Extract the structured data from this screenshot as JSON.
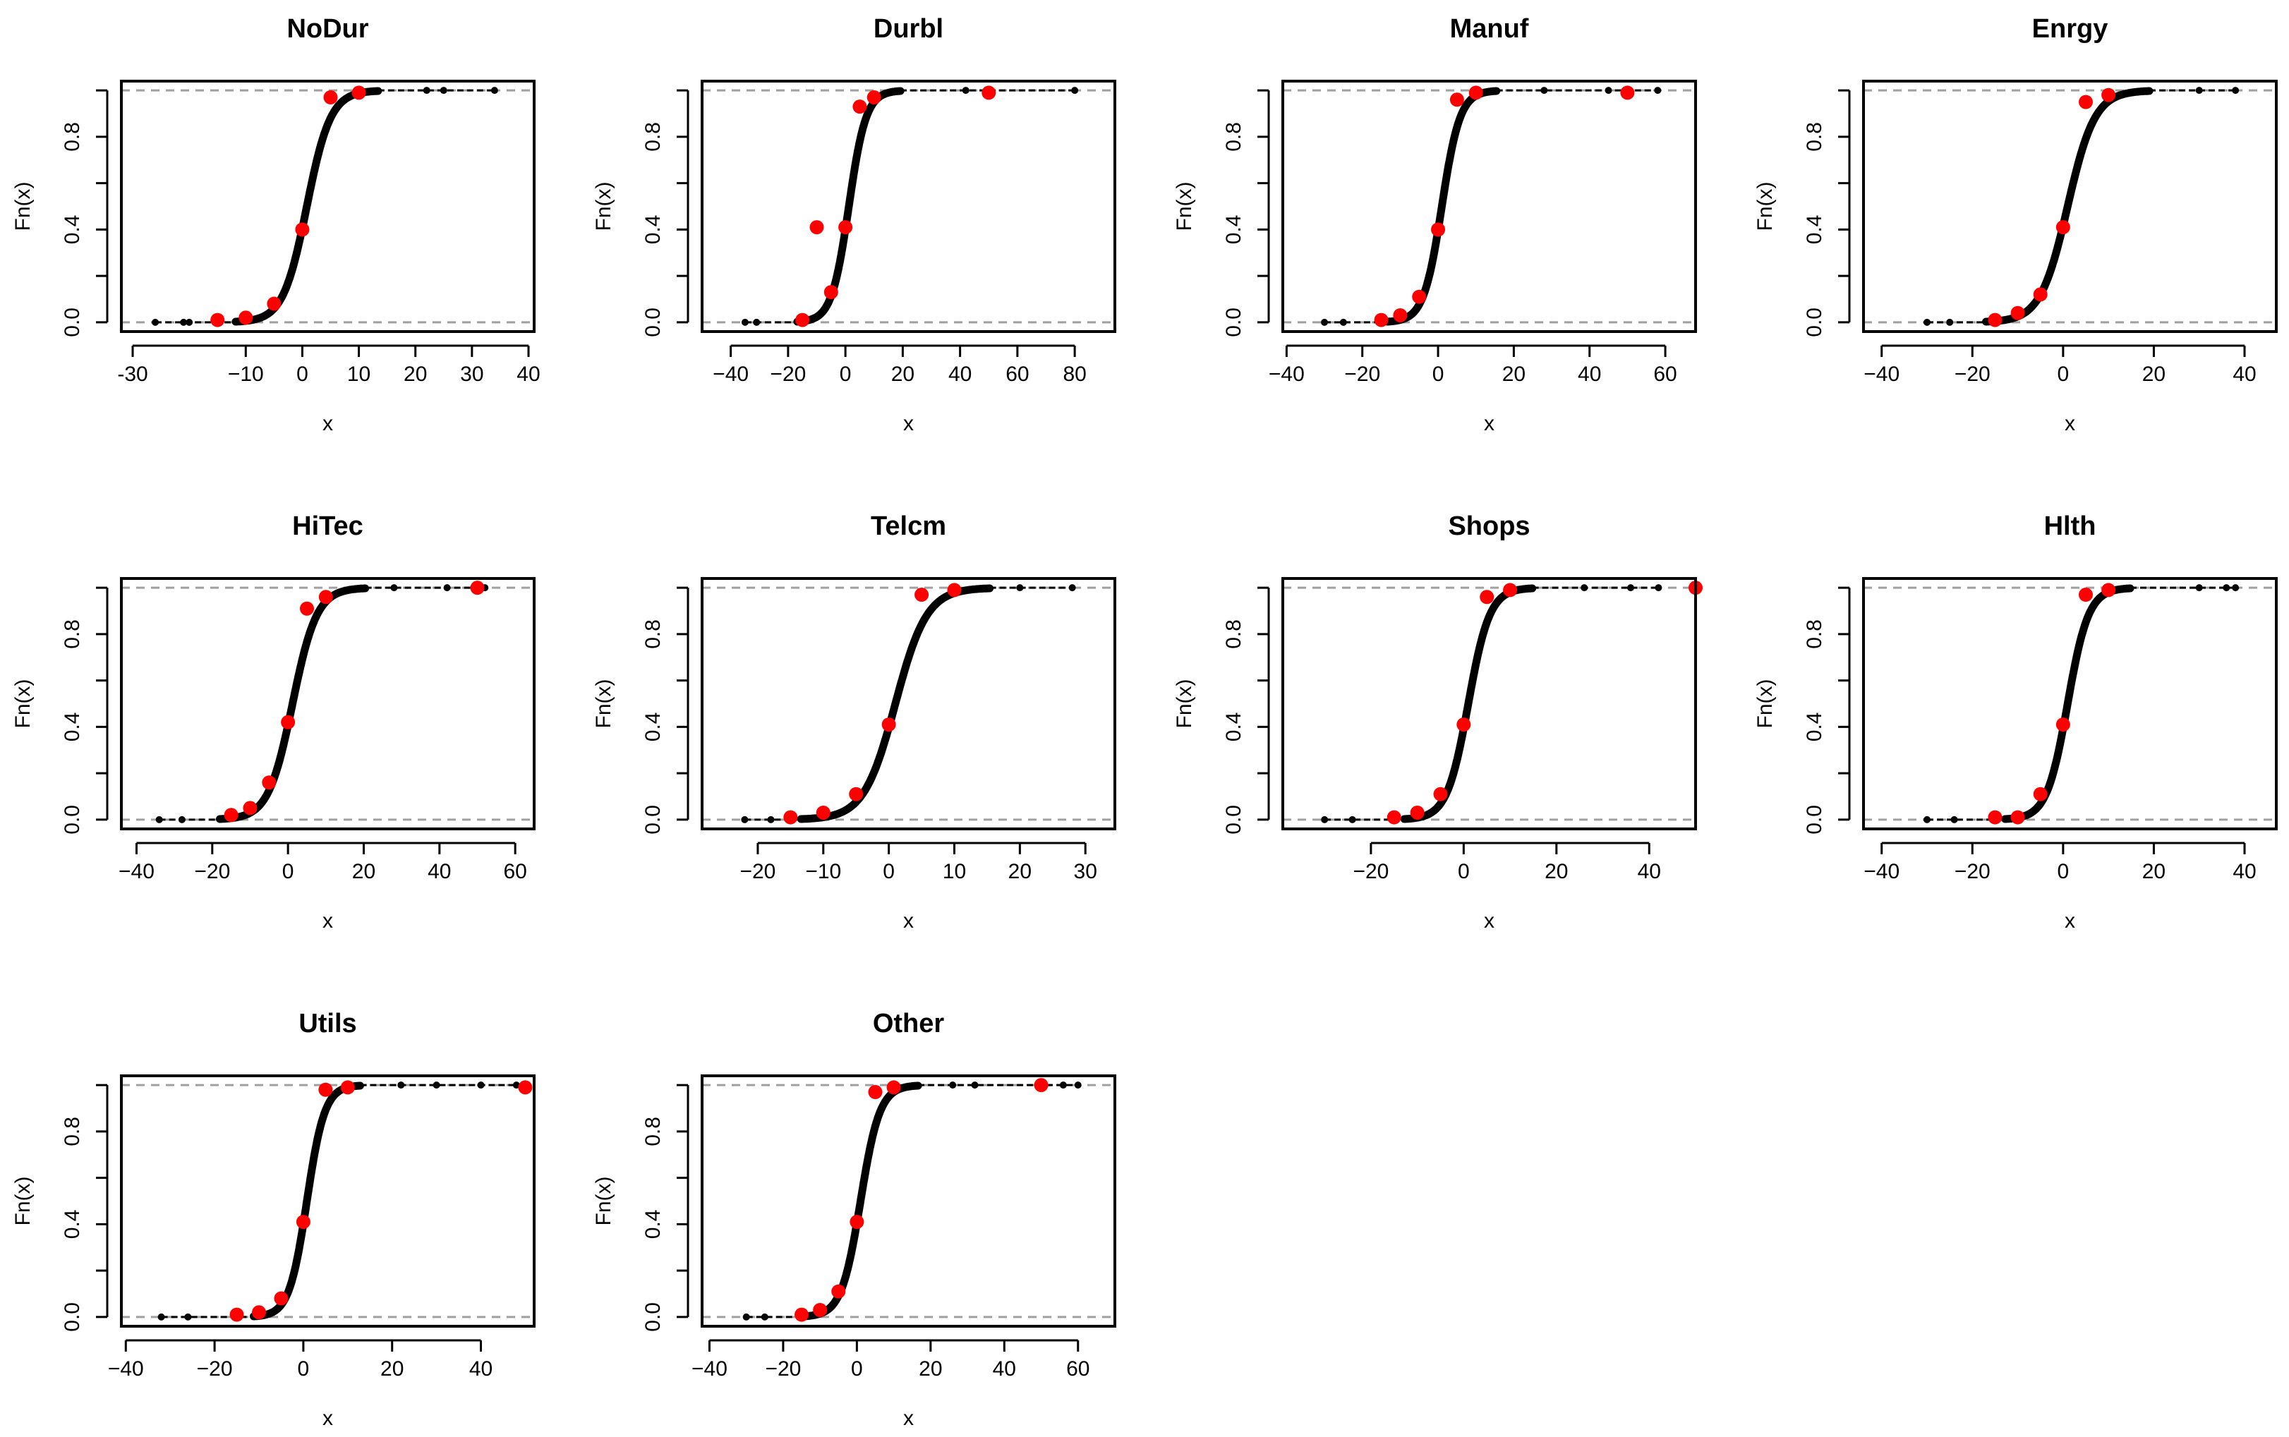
{
  "figure": {
    "layout": "3 rows x 4 columns",
    "colors": {
      "curve": "#000000",
      "points": "#ff0000",
      "reference_lines": "#a0a0a0",
      "background": "#ffffff"
    }
  },
  "chart_data": [
    {
      "type": "line",
      "title": "NoDur",
      "xlabel": "x",
      "ylabel": "Fn(x)",
      "xlim": [
        -32,
        41
      ],
      "ylim": [
        -0.04,
        1.04
      ],
      "xticks": [
        -30,
        -10,
        0,
        10,
        20,
        30,
        40
      ],
      "xtick_labels": [
        "-30",
        "−10",
        "0",
        "10",
        "20",
        "30",
        "40"
      ],
      "yticks": [
        0,
        0.4,
        0.8
      ],
      "ytick_labels": [
        "0.0",
        "0.4",
        "0.8"
      ],
      "reference_lines": [
        0,
        1
      ],
      "curve": {
        "center": 0.8,
        "scale": 2.1,
        "min": -26,
        "max": 34,
        "outliers": [
          -26,
          -21,
          -20,
          22,
          25,
          34
        ]
      },
      "points": [
        [
          -15,
          0.01
        ],
        [
          -10,
          0.02
        ],
        [
          -5,
          0.08
        ],
        [
          0,
          0.4
        ],
        [
          5,
          0.97
        ],
        [
          10,
          0.99
        ]
      ]
    },
    {
      "type": "line",
      "title": "Durbl",
      "xlabel": "x",
      "ylabel": "Fn(x)",
      "xlim": [
        -50,
        94
      ],
      "ylim": [
        -0.04,
        1.04
      ],
      "xticks": [
        -40,
        -20,
        0,
        20,
        40,
        60,
        80
      ],
      "xtick_labels": [
        "−40",
        "−20",
        "0",
        "20",
        "40",
        "60",
        "80"
      ],
      "yticks": [
        0,
        0.4,
        0.8
      ],
      "ytick_labels": [
        "0.0",
        "0.4",
        "0.8"
      ],
      "reference_lines": [
        0,
        1
      ],
      "curve": {
        "center": 1.2,
        "scale": 3.0,
        "min": -35,
        "max": 80,
        "outliers": [
          -35,
          -31,
          42,
          80
        ]
      },
      "points": [
        [
          -15,
          0.01
        ],
        [
          -10,
          0.41
        ],
        [
          -5,
          0.13
        ],
        [
          0,
          0.41
        ],
        [
          5,
          0.93
        ],
        [
          10,
          0.97
        ],
        [
          50,
          0.99
        ]
      ]
    },
    {
      "type": "line",
      "title": "Manuf",
      "xlabel": "x",
      "ylabel": "Fn(x)",
      "xlim": [
        -41,
        68
      ],
      "ylim": [
        -0.04,
        1.04
      ],
      "xticks": [
        -40,
        -20,
        0,
        20,
        40,
        60
      ],
      "xtick_labels": [
        "−40",
        "−20",
        "0",
        "20",
        "40",
        "60"
      ],
      "yticks": [
        0,
        0.4,
        0.8
      ],
      "ytick_labels": [
        "0.0",
        "0.4",
        "0.8"
      ],
      "reference_lines": [
        0,
        1
      ],
      "curve": {
        "center": 1.0,
        "scale": 2.4,
        "min": -30,
        "max": 58,
        "outliers": [
          -30,
          -25,
          28,
          45,
          58
        ]
      },
      "points": [
        [
          -15,
          0.01
        ],
        [
          -10,
          0.03
        ],
        [
          -5,
          0.11
        ],
        [
          0,
          0.4
        ],
        [
          5,
          0.96
        ],
        [
          10,
          0.99
        ],
        [
          50,
          0.99
        ]
      ]
    },
    {
      "type": "line",
      "title": "Enrgy",
      "xlabel": "x",
      "ylabel": "Fn(x)",
      "xlim": [
        -44,
        47
      ],
      "ylim": [
        -0.04,
        1.04
      ],
      "xticks": [
        -40,
        -20,
        0,
        20,
        40
      ],
      "xtick_labels": [
        "−40",
        "−20",
        "0",
        "20",
        "40"
      ],
      "yticks": [
        0,
        0.4,
        0.8
      ],
      "ytick_labels": [
        "0.0",
        "0.4",
        "0.8"
      ],
      "reference_lines": [
        0,
        1
      ],
      "curve": {
        "center": 1.0,
        "scale": 3.0,
        "min": -30,
        "max": 38,
        "outliers": [
          -30,
          -25,
          30,
          38
        ]
      },
      "points": [
        [
          -15,
          0.01
        ],
        [
          -10,
          0.04
        ],
        [
          -5,
          0.12
        ],
        [
          0,
          0.41
        ],
        [
          5,
          0.95
        ],
        [
          10,
          0.98
        ]
      ]
    },
    {
      "type": "line",
      "title": "HiTec",
      "xlabel": "x",
      "ylabel": "Fn(x)",
      "xlim": [
        -44,
        65
      ],
      "ylim": [
        -0.04,
        1.04
      ],
      "xticks": [
        -40,
        -20,
        0,
        20,
        40,
        60
      ],
      "xtick_labels": [
        "−40",
        "−20",
        "0",
        "20",
        "40",
        "60"
      ],
      "yticks": [
        0,
        0.4,
        0.8
      ],
      "ytick_labels": [
        "0.0",
        "0.4",
        "0.8"
      ],
      "reference_lines": [
        0,
        1
      ],
      "curve": {
        "center": 1.2,
        "scale": 3.2,
        "min": -34,
        "max": 52,
        "outliers": [
          -34,
          -28,
          28,
          42,
          52
        ]
      },
      "points": [
        [
          -15,
          0.02
        ],
        [
          -10,
          0.05
        ],
        [
          -5,
          0.16
        ],
        [
          0,
          0.42
        ],
        [
          5,
          0.91
        ],
        [
          10,
          0.96
        ],
        [
          50,
          1.0
        ]
      ]
    },
    {
      "type": "line",
      "title": "Telcm",
      "xlabel": "x",
      "ylabel": "Fn(x)",
      "xlim": [
        -28.5,
        34.5
      ],
      "ylim": [
        -0.04,
        1.04
      ],
      "xticks": [
        -20,
        -10,
        0,
        10,
        20,
        30
      ],
      "xtick_labels": [
        "−20",
        "−10",
        "0",
        "10",
        "20",
        "30"
      ],
      "yticks": [
        0,
        0.4,
        0.8
      ],
      "ytick_labels": [
        "0.0",
        "0.4",
        "0.8"
      ],
      "reference_lines": [
        0,
        1
      ],
      "curve": {
        "center": 1.0,
        "scale": 2.4,
        "min": -22,
        "max": 28,
        "outliers": [
          -22,
          -18,
          20,
          28
        ]
      },
      "points": [
        [
          -15,
          0.01
        ],
        [
          -10,
          0.03
        ],
        [
          -5,
          0.11
        ],
        [
          0,
          0.41
        ],
        [
          5,
          0.97
        ],
        [
          10,
          0.99
        ]
      ]
    },
    {
      "type": "line",
      "title": "Shops",
      "xlabel": "x",
      "ylabel": "Fn(x)",
      "xlim": [
        -39,
        50
      ],
      "ylim": [
        -0.04,
        1.04
      ],
      "xticks": [
        -20,
        0,
        20,
        40
      ],
      "xtick_labels": [
        "−20",
        "0",
        "20",
        "40"
      ],
      "yticks": [
        0,
        0.4,
        0.8
      ],
      "ytick_labels": [
        "0.0",
        "0.4",
        "0.8"
      ],
      "reference_lines": [
        0,
        1
      ],
      "curve": {
        "center": 1.0,
        "scale": 2.3,
        "min": -30,
        "max": 42,
        "outliers": [
          -30,
          -24,
          26,
          36,
          42
        ]
      },
      "points": [
        [
          -15,
          0.01
        ],
        [
          -10,
          0.03
        ],
        [
          -5,
          0.11
        ],
        [
          0,
          0.41
        ],
        [
          5,
          0.96
        ],
        [
          10,
          0.99
        ],
        [
          50,
          1.0
        ]
      ]
    },
    {
      "type": "line",
      "title": "Hlth",
      "xlabel": "x",
      "ylabel": "Fn(x)",
      "xlim": [
        -44,
        47
      ],
      "ylim": [
        -0.04,
        1.04
      ],
      "xticks": [
        -40,
        -20,
        0,
        20,
        40
      ],
      "xtick_labels": [
        "−40",
        "−20",
        "0",
        "20",
        "40"
      ],
      "yticks": [
        0,
        0.4,
        0.8
      ],
      "ytick_labels": [
        "0.0",
        "0.4",
        "0.8"
      ],
      "reference_lines": [
        0,
        1
      ],
      "curve": {
        "center": 1.0,
        "scale": 2.3,
        "min": -30,
        "max": 38,
        "outliers": [
          -30,
          -24,
          30,
          36,
          38
        ]
      },
      "points": [
        [
          -15,
          0.01
        ],
        [
          -10,
          0.01
        ],
        [
          -5,
          0.11
        ],
        [
          0,
          0.41
        ],
        [
          5,
          0.97
        ],
        [
          10,
          0.99
        ]
      ]
    },
    {
      "type": "line",
      "title": "Utils",
      "xlabel": "x",
      "ylabel": "Fn(x)",
      "xlim": [
        -41,
        52
      ],
      "ylim": [
        -0.04,
        1.04
      ],
      "xticks": [
        -40,
        -20,
        0,
        20,
        40
      ],
      "xtick_labels": [
        "−40",
        "−20",
        "0",
        "20",
        "40"
      ],
      "yticks": [
        0,
        0.4,
        0.8
      ],
      "ytick_labels": [
        "0.0",
        "0.4",
        "0.8"
      ],
      "reference_lines": [
        0,
        1
      ],
      "curve": {
        "center": 0.8,
        "scale": 2.0,
        "min": -32,
        "max": 48,
        "outliers": [
          -32,
          -26,
          22,
          30,
          40,
          48
        ]
      },
      "points": [
        [
          -15,
          0.01
        ],
        [
          -10,
          0.02
        ],
        [
          -5,
          0.08
        ],
        [
          0,
          0.41
        ],
        [
          5,
          0.98
        ],
        [
          10,
          0.99
        ],
        [
          50,
          0.99
        ]
      ]
    },
    {
      "type": "line",
      "title": "Other",
      "xlabel": "x",
      "ylabel": "Fn(x)",
      "xlim": [
        -42,
        70
      ],
      "ylim": [
        -0.04,
        1.04
      ],
      "xticks": [
        -40,
        -20,
        0,
        20,
        40,
        60
      ],
      "xtick_labels": [
        "−40",
        "−20",
        "0",
        "20",
        "40",
        "60"
      ],
      "yticks": [
        0,
        0.4,
        0.8
      ],
      "ytick_labels": [
        "0.0",
        "0.4",
        "0.8"
      ],
      "reference_lines": [
        0,
        1
      ],
      "curve": {
        "center": 1.0,
        "scale": 2.6,
        "min": -30,
        "max": 60,
        "outliers": [
          -30,
          -25,
          26,
          32,
          56,
          60
        ]
      },
      "points": [
        [
          -15,
          0.01
        ],
        [
          -10,
          0.03
        ],
        [
          -5,
          0.11
        ],
        [
          0,
          0.41
        ],
        [
          5,
          0.97
        ],
        [
          10,
          0.99
        ],
        [
          50,
          1.0
        ]
      ]
    }
  ]
}
